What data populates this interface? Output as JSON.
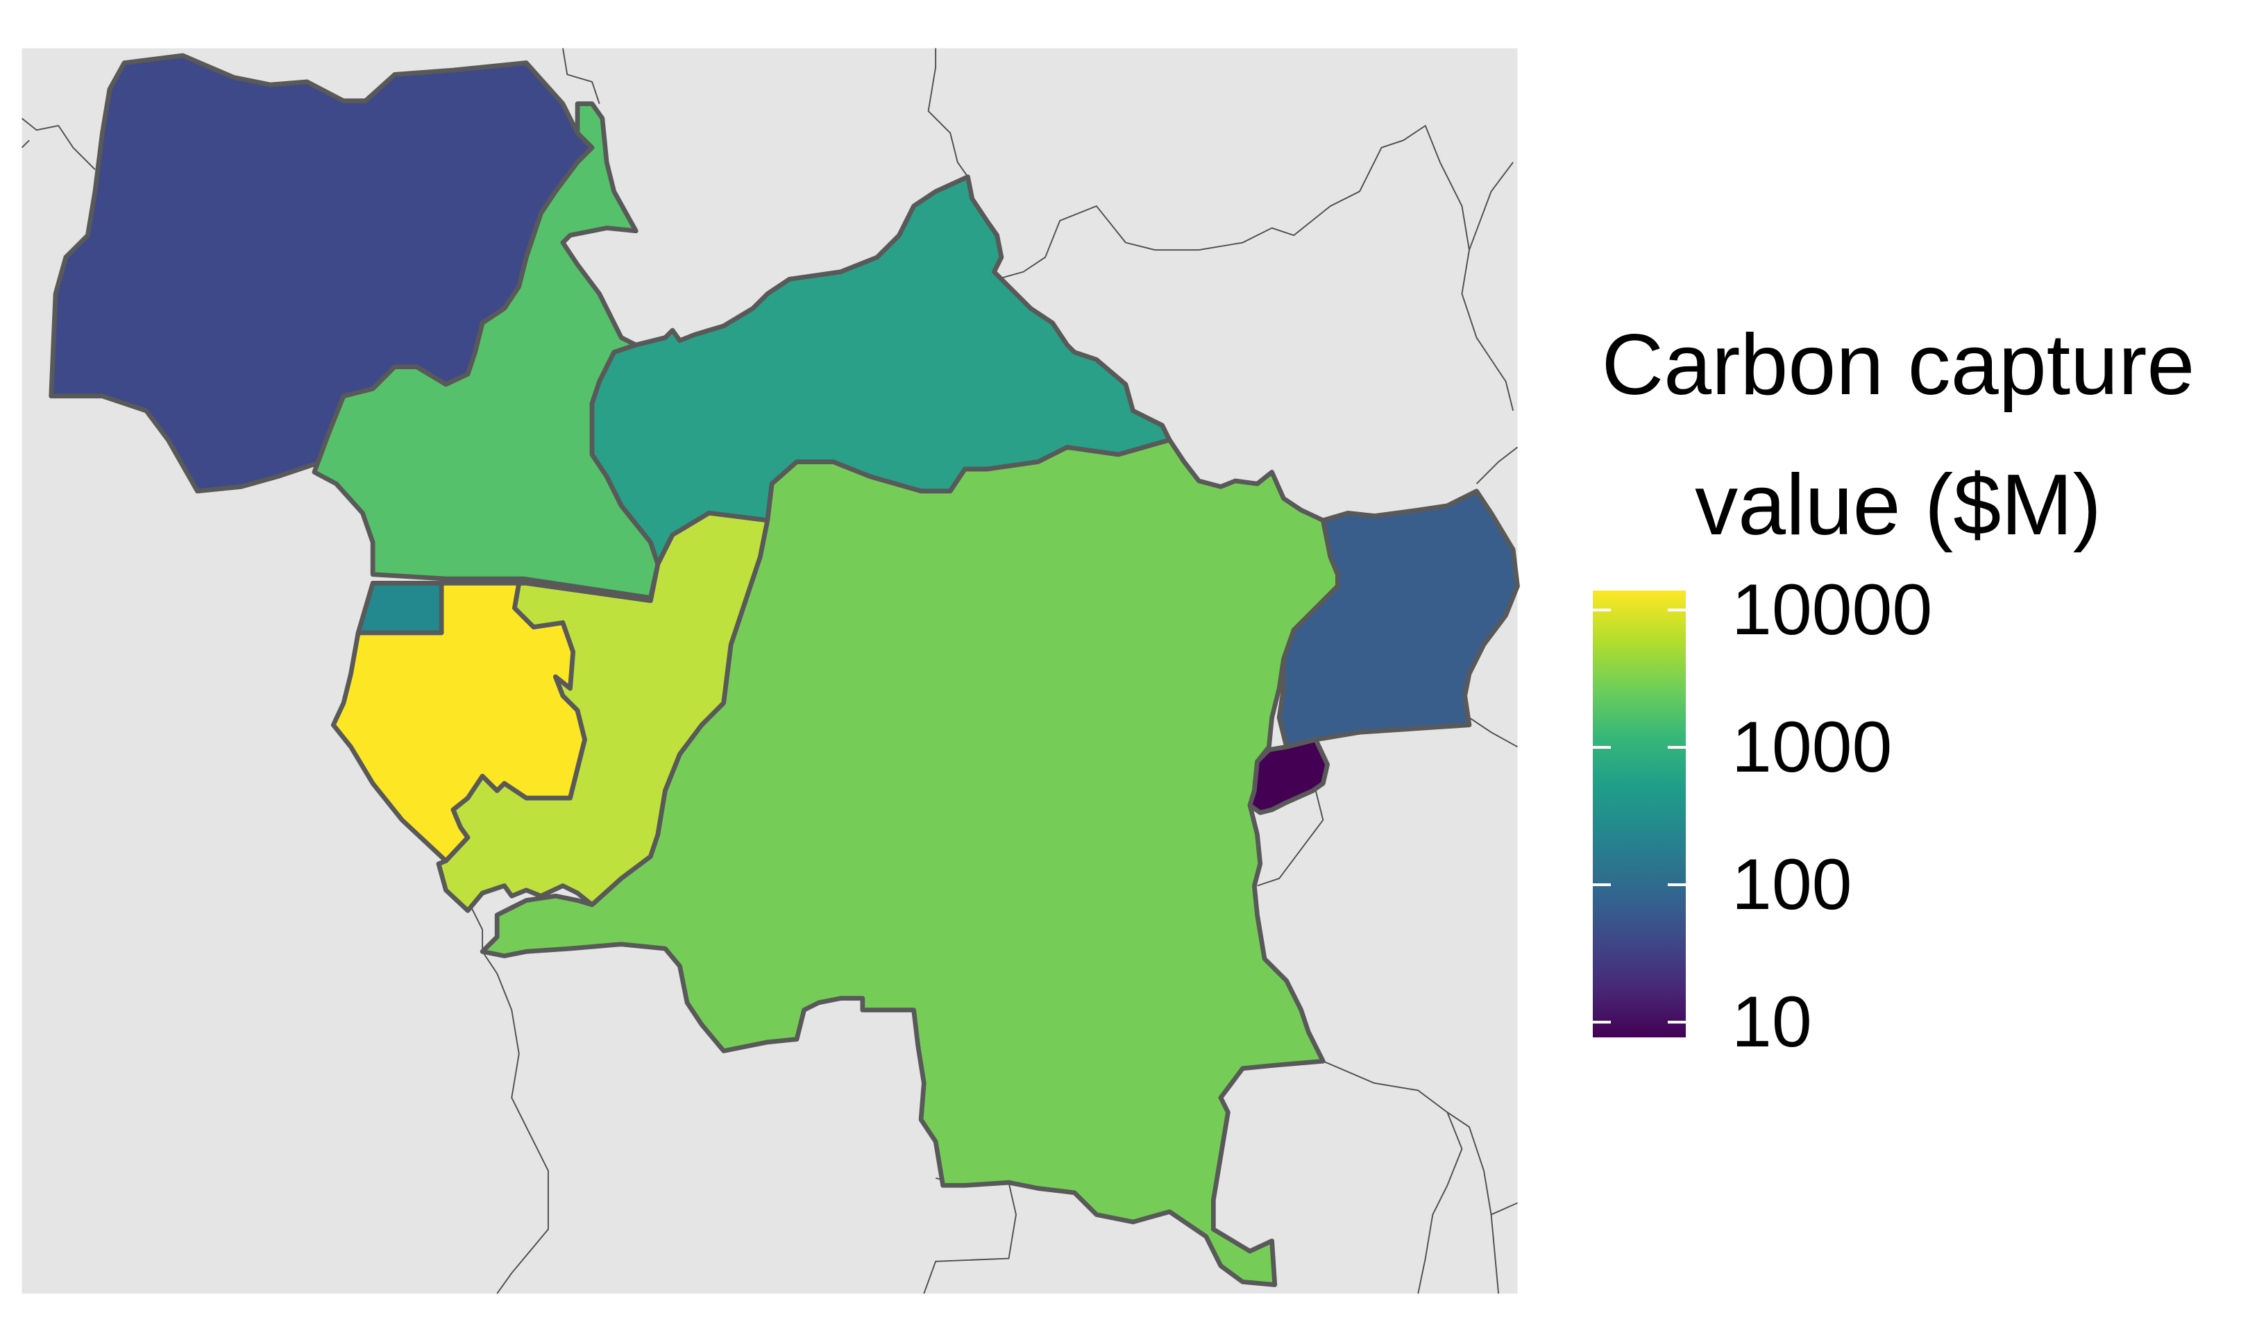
{
  "legend": {
    "title_line1": "Carbon capture",
    "title_line2": "value ($M)",
    "scale": "log10",
    "breaks": [
      {
        "label": "10000",
        "value": 10000
      },
      {
        "label": "1000",
        "value": 1000
      },
      {
        "label": "100",
        "value": 100
      },
      {
        "label": "10",
        "value": 10
      }
    ],
    "palette": [
      "#440154",
      "#482878",
      "#3e4989",
      "#31688e",
      "#26828e",
      "#1f9e89",
      "#35b779",
      "#6ece58",
      "#b5de2b",
      "#fde725"
    ]
  },
  "colors": {
    "land_background": "#e5e5e5",
    "other_borders": "#4d4d4d",
    "highlighted_borders": "#595959",
    "page": "#ffffff"
  }
}
